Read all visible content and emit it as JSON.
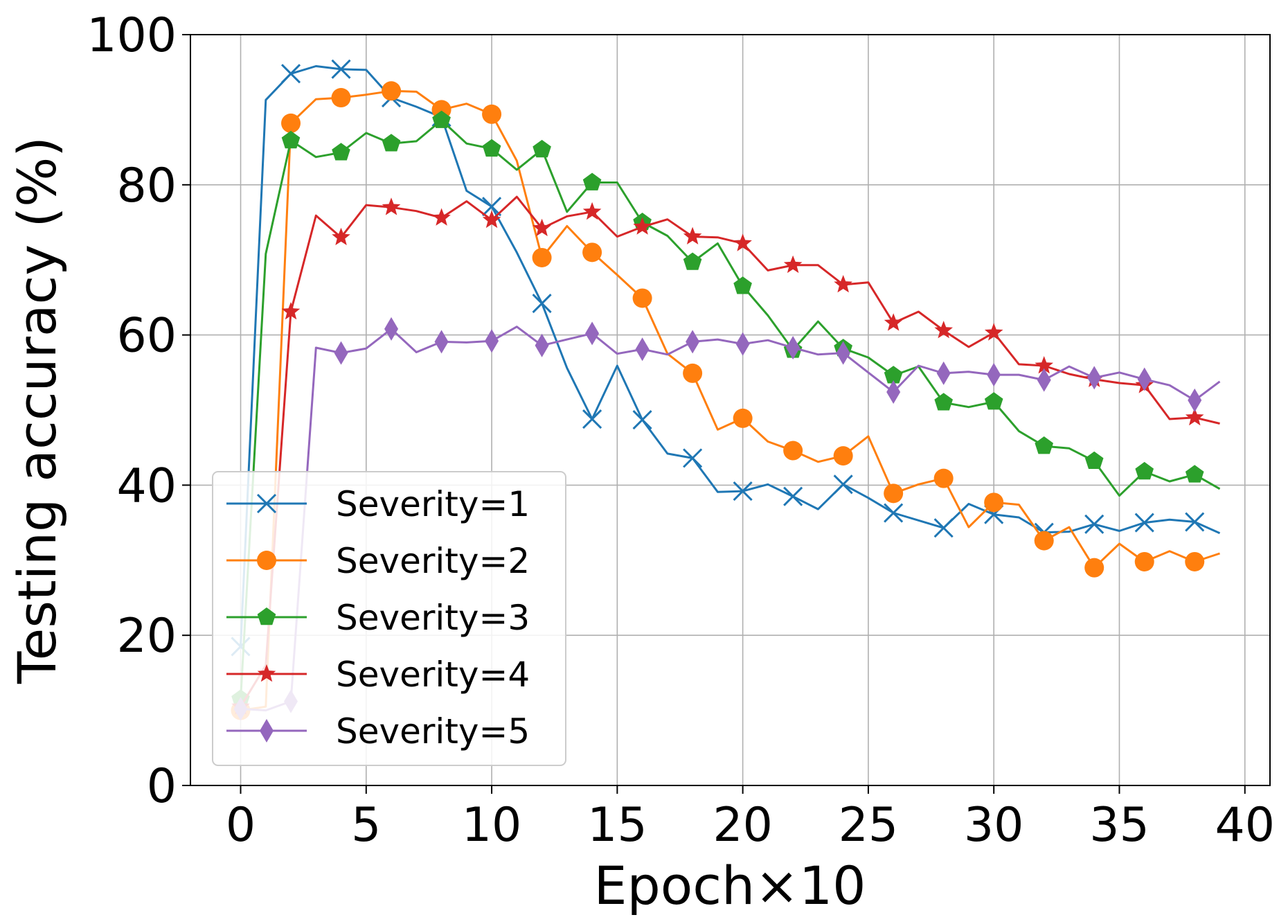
{
  "chart_data": {
    "type": "line",
    "title": "",
    "xlabel": "Epoch×10",
    "ylabel": "Testing accuracy (%)",
    "xlim": [
      -2,
      41
    ],
    "ylim": [
      0,
      100
    ],
    "xticks": [
      0,
      5,
      10,
      15,
      20,
      25,
      30,
      35,
      40
    ],
    "yticks": [
      0,
      20,
      40,
      60,
      80,
      100
    ],
    "grid": true,
    "legend_position": "lower-left",
    "x": [
      0,
      1,
      2,
      3,
      4,
      5,
      6,
      7,
      8,
      9,
      10,
      11,
      12,
      13,
      14,
      15,
      16,
      17,
      18,
      19,
      20,
      21,
      22,
      23,
      24,
      25,
      26,
      27,
      28,
      29,
      30,
      31,
      32,
      33,
      34,
      35,
      36,
      37,
      38,
      39
    ],
    "series": [
      {
        "name": "Severity=1",
        "color": "#1f77b4",
        "marker": "x",
        "marker_every": 2,
        "values": [
          18.5,
          91.3,
          94.8,
          95.8,
          95.4,
          95.3,
          91.6,
          90.4,
          89.0,
          79.2,
          77.1,
          71.0,
          64.2,
          55.6,
          48.8,
          55.9,
          48.7,
          44.2,
          43.6,
          39.1,
          39.2,
          40.1,
          38.5,
          36.8,
          40.1,
          38.3,
          36.3,
          35.3,
          34.3,
          37.5,
          36.1,
          35.7,
          33.7,
          33.8,
          34.8,
          33.9,
          35.0,
          35.4,
          35.1,
          33.6
        ]
      },
      {
        "name": "Severity=2",
        "color": "#ff7f0e",
        "marker": "circle",
        "marker_every": 2,
        "values": [
          10.0,
          10.5,
          88.2,
          91.4,
          91.6,
          92.0,
          92.5,
          92.4,
          90.0,
          90.8,
          89.4,
          83.2,
          70.3,
          74.5,
          71.0,
          68.0,
          64.9,
          57.5,
          54.9,
          47.4,
          48.9,
          45.8,
          44.6,
          43.1,
          43.9,
          46.5,
          38.9,
          40.1,
          40.9,
          34.4,
          37.7,
          37.4,
          32.6,
          34.4,
          29.0,
          32.2,
          29.8,
          31.2,
          29.8,
          30.9
        ]
      },
      {
        "name": "Severity=3",
        "color": "#2ca02c",
        "marker": "pentagon",
        "marker_every": 2,
        "values": [
          11.5,
          70.8,
          85.9,
          83.7,
          84.3,
          86.9,
          85.5,
          85.8,
          88.6,
          85.5,
          84.8,
          82.0,
          84.7,
          76.4,
          80.3,
          80.3,
          75.0,
          73.2,
          69.7,
          72.2,
          66.5,
          62.6,
          58.0,
          61.8,
          58.2,
          57.0,
          54.6,
          55.8,
          51.0,
          50.4,
          51.1,
          47.2,
          45.2,
          44.9,
          43.2,
          38.6,
          41.8,
          40.5,
          41.4,
          39.5
        ]
      },
      {
        "name": "Severity=4",
        "color": "#d62728",
        "marker": "star",
        "marker_every": 2,
        "values": [
          10.5,
          16.0,
          63.1,
          75.9,
          73.0,
          77.3,
          77.0,
          76.5,
          75.6,
          77.8,
          75.3,
          78.4,
          74.2,
          75.8,
          76.4,
          73.1,
          74.4,
          75.4,
          73.1,
          73.0,
          72.2,
          68.6,
          69.3,
          69.3,
          66.7,
          67.0,
          61.6,
          63.1,
          60.6,
          58.4,
          60.3,
          56.1,
          55.9,
          54.8,
          54.1,
          53.6,
          53.3,
          48.8,
          49.0,
          48.2
        ]
      },
      {
        "name": "Severity=5",
        "color": "#9467bd",
        "marker": "thin_diamond",
        "marker_every": 2,
        "values": [
          10.2,
          10.0,
          11.2,
          58.3,
          57.6,
          58.2,
          60.8,
          57.7,
          59.1,
          59.0,
          59.2,
          61.1,
          58.6,
          59.4,
          60.2,
          57.5,
          58.1,
          57.4,
          59.1,
          59.4,
          58.8,
          59.3,
          58.3,
          57.4,
          57.6,
          55.0,
          52.4,
          55.9,
          54.9,
          55.1,
          54.7,
          54.7,
          54.0,
          55.8,
          54.3,
          55.0,
          54.1,
          53.3,
          51.3,
          53.8
        ]
      }
    ]
  }
}
